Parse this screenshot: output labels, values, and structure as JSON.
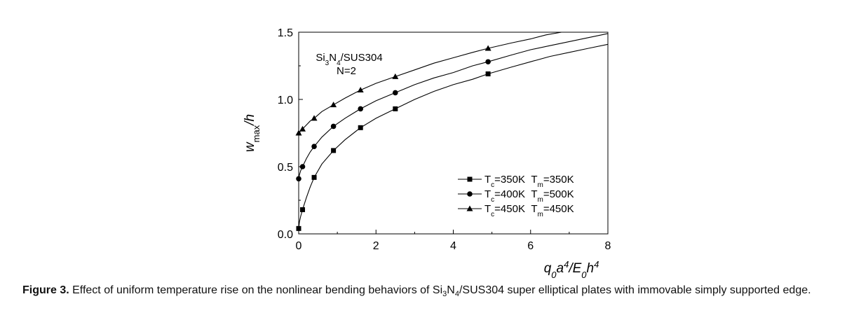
{
  "chart_data": {
    "type": "line",
    "xlim": [
      0,
      8
    ],
    "ylim": [
      0,
      1.5
    ],
    "xticks": [
      0,
      2,
      4,
      6,
      8
    ],
    "yticks": [
      0.0,
      0.5,
      1.0,
      1.5
    ],
    "xtick_labels": [
      "0",
      "2",
      "4",
      "6",
      "8"
    ],
    "ytick_labels": [
      "0.0",
      "0.5",
      "1.0",
      "1.5"
    ],
    "xlabel": {
      "q": "q",
      "sub0": "0",
      "a": "a",
      "sup4": "4",
      "slash": "/E",
      "sub0b": "0",
      "h": "h",
      "sup4b": "4"
    },
    "ylabel": {
      "w": "w",
      "sub": "max",
      "rest": "/h"
    },
    "annotation": {
      "line1_a": "Si",
      "line1_sub3": "3",
      "line1_b": "N",
      "line1_sub4": "4",
      "line1_c": "/SUS304",
      "line2": "N=2"
    },
    "legend_position": "bottom-right",
    "grid": false,
    "series": [
      {
        "marker": "square",
        "legend": {
          "tc": "T",
          "tc_sub": "c",
          "tc_val": "=350K",
          "tm": "T",
          "tm_sub": "m",
          "tm_val": "=350K"
        },
        "x": [
          0.0,
          0.1,
          0.4,
          0.9,
          1.6,
          2.5,
          4.9
        ],
        "y": [
          0.04,
          0.18,
          0.42,
          0.62,
          0.79,
          0.93,
          1.19
        ],
        "curve_x": [
          0.0,
          0.02,
          0.05,
          0.1,
          0.2,
          0.3,
          0.4,
          0.6,
          0.9,
          1.2,
          1.6,
          2.0,
          2.5,
          3.0,
          3.5,
          4.0,
          4.5,
          4.9,
          5.5,
          6.0,
          6.5,
          7.0,
          7.5,
          8.0
        ],
        "curve_y": [
          0.04,
          0.09,
          0.13,
          0.18,
          0.27,
          0.35,
          0.42,
          0.52,
          0.62,
          0.7,
          0.79,
          0.86,
          0.93,
          1.0,
          1.06,
          1.11,
          1.15,
          1.19,
          1.24,
          1.28,
          1.32,
          1.35,
          1.38,
          1.41
        ]
      },
      {
        "marker": "circle",
        "legend": {
          "tc": "T",
          "tc_sub": "c",
          "tc_val": "=400K",
          "tm": "T",
          "tm_sub": "m",
          "tm_val": "=500K"
        },
        "x": [
          0.0,
          0.1,
          0.4,
          0.9,
          1.6,
          2.5,
          4.9
        ],
        "y": [
          0.41,
          0.5,
          0.65,
          0.8,
          0.93,
          1.05,
          1.28
        ],
        "curve_x": [
          0.0,
          0.02,
          0.05,
          0.1,
          0.2,
          0.3,
          0.4,
          0.6,
          0.9,
          1.2,
          1.6,
          2.0,
          2.5,
          3.0,
          3.5,
          4.0,
          4.5,
          4.9,
          5.5,
          6.0,
          6.5,
          7.0,
          7.5,
          8.0
        ],
        "curve_y": [
          0.41,
          0.44,
          0.47,
          0.5,
          0.56,
          0.61,
          0.65,
          0.72,
          0.8,
          0.86,
          0.93,
          0.99,
          1.05,
          1.11,
          1.16,
          1.2,
          1.25,
          1.28,
          1.33,
          1.37,
          1.4,
          1.43,
          1.46,
          1.49
        ]
      },
      {
        "marker": "triangle",
        "legend": {
          "tc": "T",
          "tc_sub": "c",
          "tc_val": "=450K",
          "tm": "T",
          "tm_sub": "m",
          "tm_val": "=450K"
        },
        "x": [
          0.0,
          0.1,
          0.4,
          0.9,
          1.6,
          2.5,
          4.9
        ],
        "y": [
          0.75,
          0.78,
          0.86,
          0.96,
          1.07,
          1.17,
          1.38
        ],
        "curve_x": [
          0.0,
          0.05,
          0.1,
          0.2,
          0.3,
          0.4,
          0.6,
          0.9,
          1.2,
          1.6,
          2.0,
          2.5,
          3.0,
          3.5,
          4.0,
          4.5,
          4.9,
          5.5,
          6.0,
          6.4,
          6.8
        ],
        "curve_y": [
          0.75,
          0.765,
          0.78,
          0.81,
          0.84,
          0.86,
          0.91,
          0.96,
          1.01,
          1.07,
          1.12,
          1.17,
          1.22,
          1.27,
          1.31,
          1.35,
          1.38,
          1.42,
          1.45,
          1.48,
          1.5
        ]
      }
    ]
  },
  "caption": {
    "label": "Figure 3.",
    "text_a": " Effect of uniform temperature rise on the nonlinear bending behaviors of Si",
    "sub3": "3",
    "text_b": "N",
    "sub4": "4",
    "text_c": "/SUS304 super elliptical plates with immovable simply supported edge."
  }
}
